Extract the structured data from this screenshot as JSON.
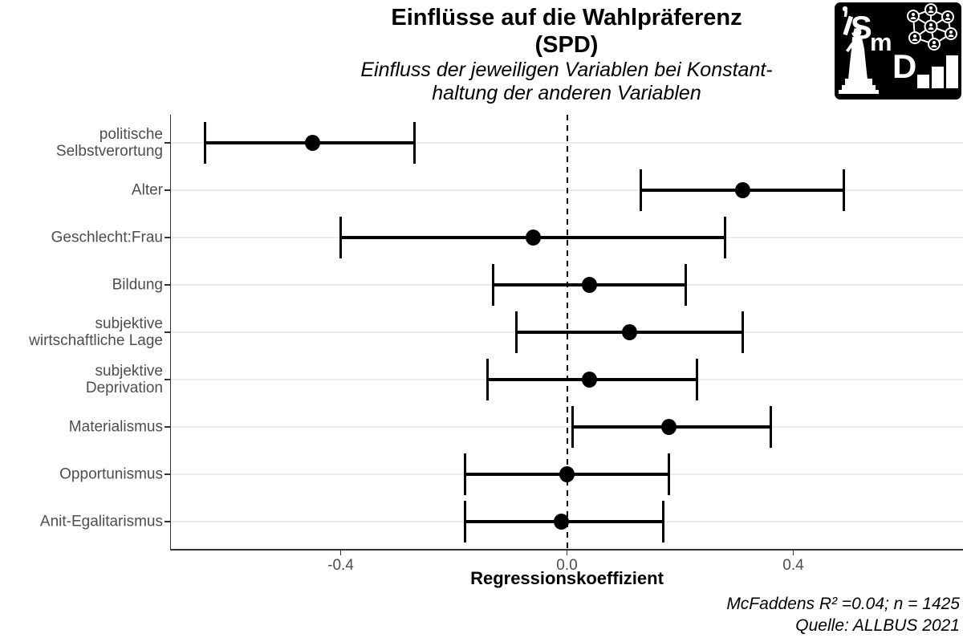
{
  "header": {
    "title_line1": "Einflüsse auf die Wahlpräferenz",
    "title_line2": "(SPD)",
    "subtitle_line1": "Einfluss der jeweiligen Variablen bei Konstant-",
    "subtitle_line2": "haltung der anderen Variablen"
  },
  "logo": {
    "letters": [
      "S",
      "m",
      "D"
    ]
  },
  "chart_data": {
    "type": "scatter",
    "subtype": "coefficient-dot-whisker-plot",
    "title": "Einflüsse auf die Wahlpräferenz (SPD)",
    "subtitle": "Einfluss der jeweiligen Variablen bei Konstanthaltung der anderen Variablen",
    "xlabel": "Regressionskoeffizient",
    "ylabel": "",
    "xlim": [
      -0.7,
      0.7
    ],
    "x_ticks": [
      {
        "value": -0.4,
        "label": "-0.4"
      },
      {
        "value": 0.0,
        "label": "0.0"
      },
      {
        "value": 0.4,
        "label": "0.4"
      }
    ],
    "reference_line_x": 0.0,
    "grid": "horizontal-major-only",
    "legend": "none",
    "rows": [
      {
        "label": "politische Selbstverortung",
        "label_lines": [
          "politische",
          "Selbstverortung"
        ],
        "estimate": -0.45,
        "ci_low": -0.64,
        "ci_high": -0.27
      },
      {
        "label": "Alter",
        "label_lines": [
          "Alter"
        ],
        "estimate": 0.31,
        "ci_low": 0.13,
        "ci_high": 0.49
      },
      {
        "label": "Geschlecht:Frau",
        "label_lines": [
          "Geschlecht:Frau"
        ],
        "estimate": -0.06,
        "ci_low": -0.4,
        "ci_high": 0.28
      },
      {
        "label": "Bildung",
        "label_lines": [
          "Bildung"
        ],
        "estimate": 0.04,
        "ci_low": -0.13,
        "ci_high": 0.21
      },
      {
        "label": "subjektive wirtschaftliche Lage",
        "label_lines": [
          "subjektive",
          "wirtschaftliche Lage"
        ],
        "estimate": 0.11,
        "ci_low": -0.09,
        "ci_high": 0.31
      },
      {
        "label": "subjektive Deprivation",
        "label_lines": [
          "subjektive",
          "Deprivation"
        ],
        "estimate": 0.04,
        "ci_low": -0.14,
        "ci_high": 0.23
      },
      {
        "label": "Materialismus",
        "label_lines": [
          "Materialismus"
        ],
        "estimate": 0.18,
        "ci_low": 0.01,
        "ci_high": 0.36
      },
      {
        "label": "Opportunismus",
        "label_lines": [
          "Opportunismus"
        ],
        "estimate": 0.0,
        "ci_low": -0.18,
        "ci_high": 0.18
      },
      {
        "label": "Anit-Egalitarismus",
        "label_lines": [
          "Anit-Egalitarismus"
        ],
        "estimate": -0.01,
        "ci_low": -0.18,
        "ci_high": 0.17
      }
    ]
  },
  "caption": {
    "line1": "McFaddens R² =0.04; n = 1425",
    "line2": "Quelle: ALLBUS 2021"
  },
  "colors": {
    "point": "#000000",
    "errorbar": "#000000",
    "gridline": "#ebebeb",
    "axis_line": "#333333",
    "axis_text": "#4d4d4d",
    "reference_line": "#000000",
    "logo_bg": "#000000",
    "logo_fg": "#ffffff"
  }
}
